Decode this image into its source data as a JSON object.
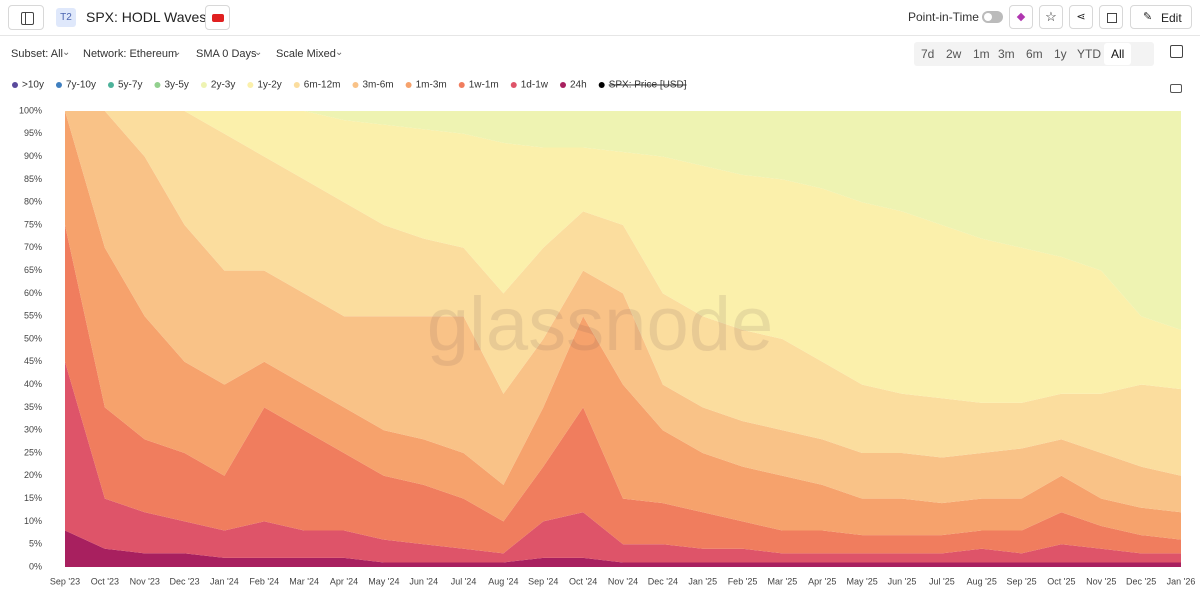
{
  "header": {
    "badge": "T2",
    "title": "SPX: HODL Waves",
    "toggle_label": "Point-in-Time",
    "edit": "Edit"
  },
  "filters": [
    "Subset: All",
    "Network: Ethereum",
    "SMA 0 Days",
    "Scale Mixed"
  ],
  "ranges": [
    "7d",
    "2w",
    "1m",
    "3m",
    "6m",
    "1y",
    "YTD",
    "All"
  ],
  "watermark": "glassnode",
  "chart_data": {
    "type": "area",
    "stacked": true,
    "categories": [
      "Sep '23",
      "Oct '23",
      "Nov '23",
      "Dec '23",
      "Jan '24",
      "Feb '24",
      "Mar '24",
      "Apr '24",
      "May '24",
      "Jun '24",
      "Jul '24",
      "Aug '24",
      "Sep '24",
      "Oct '24",
      "Nov '24",
      "Dec '24",
      "Jan '25",
      "Feb '25",
      "Mar '25",
      "Apr '25",
      "May '25",
      "Jun '25",
      "Jul '25",
      "Aug '25",
      "Sep '25",
      "Oct '25",
      "Nov '25",
      "Dec '25",
      "Jan '26"
    ],
    "ylim": [
      0,
      100
    ],
    "yticks": [
      {
        "value": 0,
        "label": "0%"
      },
      {
        "value": 5,
        "label": "5%"
      },
      {
        "value": 10,
        "label": "10%"
      },
      {
        "value": 15,
        "label": "15%"
      },
      {
        "value": 20,
        "label": "20%"
      },
      {
        "value": 25,
        "label": "25%"
      },
      {
        "value": 30,
        "label": "30%"
      },
      {
        "value": 35,
        "label": "35%"
      },
      {
        "value": 40,
        "label": "40%"
      },
      {
        "value": 45,
        "label": "45%"
      },
      {
        "value": 50,
        "label": "50%"
      },
      {
        "value": 55,
        "label": "55%"
      },
      {
        "value": 60,
        "label": "60%"
      },
      {
        "value": 65,
        "label": "65%"
      },
      {
        "value": 70,
        "label": "70%"
      },
      {
        "value": 75,
        "label": "75%"
      },
      {
        "value": 80,
        "label": "80%"
      },
      {
        "value": 85,
        "label": "85%"
      },
      {
        "value": 90,
        "label": "90%"
      },
      {
        "value": 95,
        "label": "95%"
      },
      {
        "value": 100,
        "label": "100%"
      }
    ],
    "grid": false,
    "series": [
      {
        "name": ">10y",
        "color": "#5a4a9c",
        "values": [
          0,
          0,
          0,
          0,
          0,
          0,
          0,
          0,
          0,
          0,
          0,
          0,
          0,
          0,
          0,
          0,
          0,
          0,
          0,
          0,
          0,
          0,
          0,
          0,
          0,
          0,
          0,
          0,
          0
        ]
      },
      {
        "name": "7y-10y",
        "color": "#3f7fbf",
        "values": [
          0,
          0,
          0,
          0,
          0,
          0,
          0,
          0,
          0,
          0,
          0,
          0,
          0,
          0,
          0,
          0,
          0,
          0,
          0,
          0,
          0,
          0,
          0,
          0,
          0,
          0,
          0,
          0,
          0
        ]
      },
      {
        "name": "5y-7y",
        "color": "#4db29a",
        "values": [
          0,
          0,
          0,
          0,
          0,
          0,
          0,
          0,
          0,
          0,
          0,
          0,
          0,
          0,
          0,
          0,
          0,
          0,
          0,
          0,
          0,
          0,
          0,
          0,
          0,
          0,
          0,
          0,
          0
        ]
      },
      {
        "name": "3y-5y",
        "color": "#92d08e",
        "values": [
          0,
          0,
          0,
          0,
          0,
          0,
          0,
          0,
          0,
          0,
          0,
          0,
          0,
          0,
          0,
          0,
          0,
          0,
          0,
          0,
          0,
          0,
          0,
          0,
          0,
          0,
          0,
          0,
          0
        ]
      },
      {
        "name": "2y-3y",
        "color": "#eef3b2",
        "values": [
          0,
          0,
          0,
          0,
          0,
          0,
          0,
          2,
          3,
          4,
          5,
          7,
          8,
          8,
          9,
          10,
          12,
          14,
          15,
          17,
          20,
          22,
          25,
          28,
          30,
          32,
          35,
          45,
          48
        ]
      },
      {
        "name": "1y-2y",
        "color": "#fbf0ab",
        "values": [
          0,
          0,
          0,
          0,
          5,
          10,
          15,
          18,
          22,
          24,
          25,
          33,
          22,
          14,
          16,
          30,
          33,
          34,
          35,
          38,
          40,
          40,
          38,
          36,
          34,
          30,
          27,
          15,
          13
        ]
      },
      {
        "name": "6m-12m",
        "color": "#fbdd9e",
        "values": [
          0,
          0,
          10,
          25,
          30,
          25,
          25,
          25,
          20,
          17,
          15,
          22,
          20,
          13,
          15,
          20,
          20,
          20,
          20,
          17,
          15,
          13,
          13,
          11,
          10,
          10,
          13,
          18,
          19
        ]
      },
      {
        "name": "3m-6m",
        "color": "#f9c287",
        "values": [
          0,
          30,
          35,
          30,
          25,
          20,
          20,
          20,
          25,
          27,
          30,
          20,
          15,
          10,
          20,
          10,
          10,
          10,
          10,
          10,
          10,
          10,
          10,
          10,
          11,
          8,
          10,
          9,
          8
        ]
      },
      {
        "name": "1m-3m",
        "color": "#f6a26c",
        "values": [
          25,
          35,
          27,
          20,
          20,
          10,
          10,
          10,
          10,
          10,
          10,
          8,
          13,
          20,
          25,
          16,
          13,
          12,
          12,
          10,
          8,
          8,
          7,
          7,
          7,
          8,
          6,
          6,
          6
        ]
      },
      {
        "name": "1w-1m",
        "color": "#f07d5e",
        "values": [
          30,
          20,
          16,
          15,
          12,
          25,
          22,
          17,
          14,
          13,
          11,
          7,
          12,
          23,
          10,
          9,
          8,
          6,
          5,
          5,
          4,
          4,
          4,
          4,
          5,
          7,
          5,
          4,
          3
        ]
      },
      {
        "name": "1d-1w",
        "color": "#de5469",
        "values": [
          37,
          11,
          9,
          7,
          6,
          8,
          6,
          6,
          5,
          4,
          3,
          2,
          8,
          10,
          4,
          4,
          3,
          3,
          2,
          2,
          2,
          2,
          2,
          3,
          2,
          4,
          3,
          2,
          2
        ]
      },
      {
        "name": "24h",
        "color": "#a8205f",
        "values": [
          8,
          4,
          3,
          3,
          2,
          2,
          2,
          2,
          1,
          1,
          1,
          1,
          2,
          2,
          1,
          1,
          1,
          1,
          1,
          1,
          1,
          1,
          1,
          1,
          1,
          1,
          1,
          1,
          1
        ]
      }
    ],
    "hidden_series": {
      "name": "SPX: Price [USD]",
      "color": "#000000"
    }
  }
}
